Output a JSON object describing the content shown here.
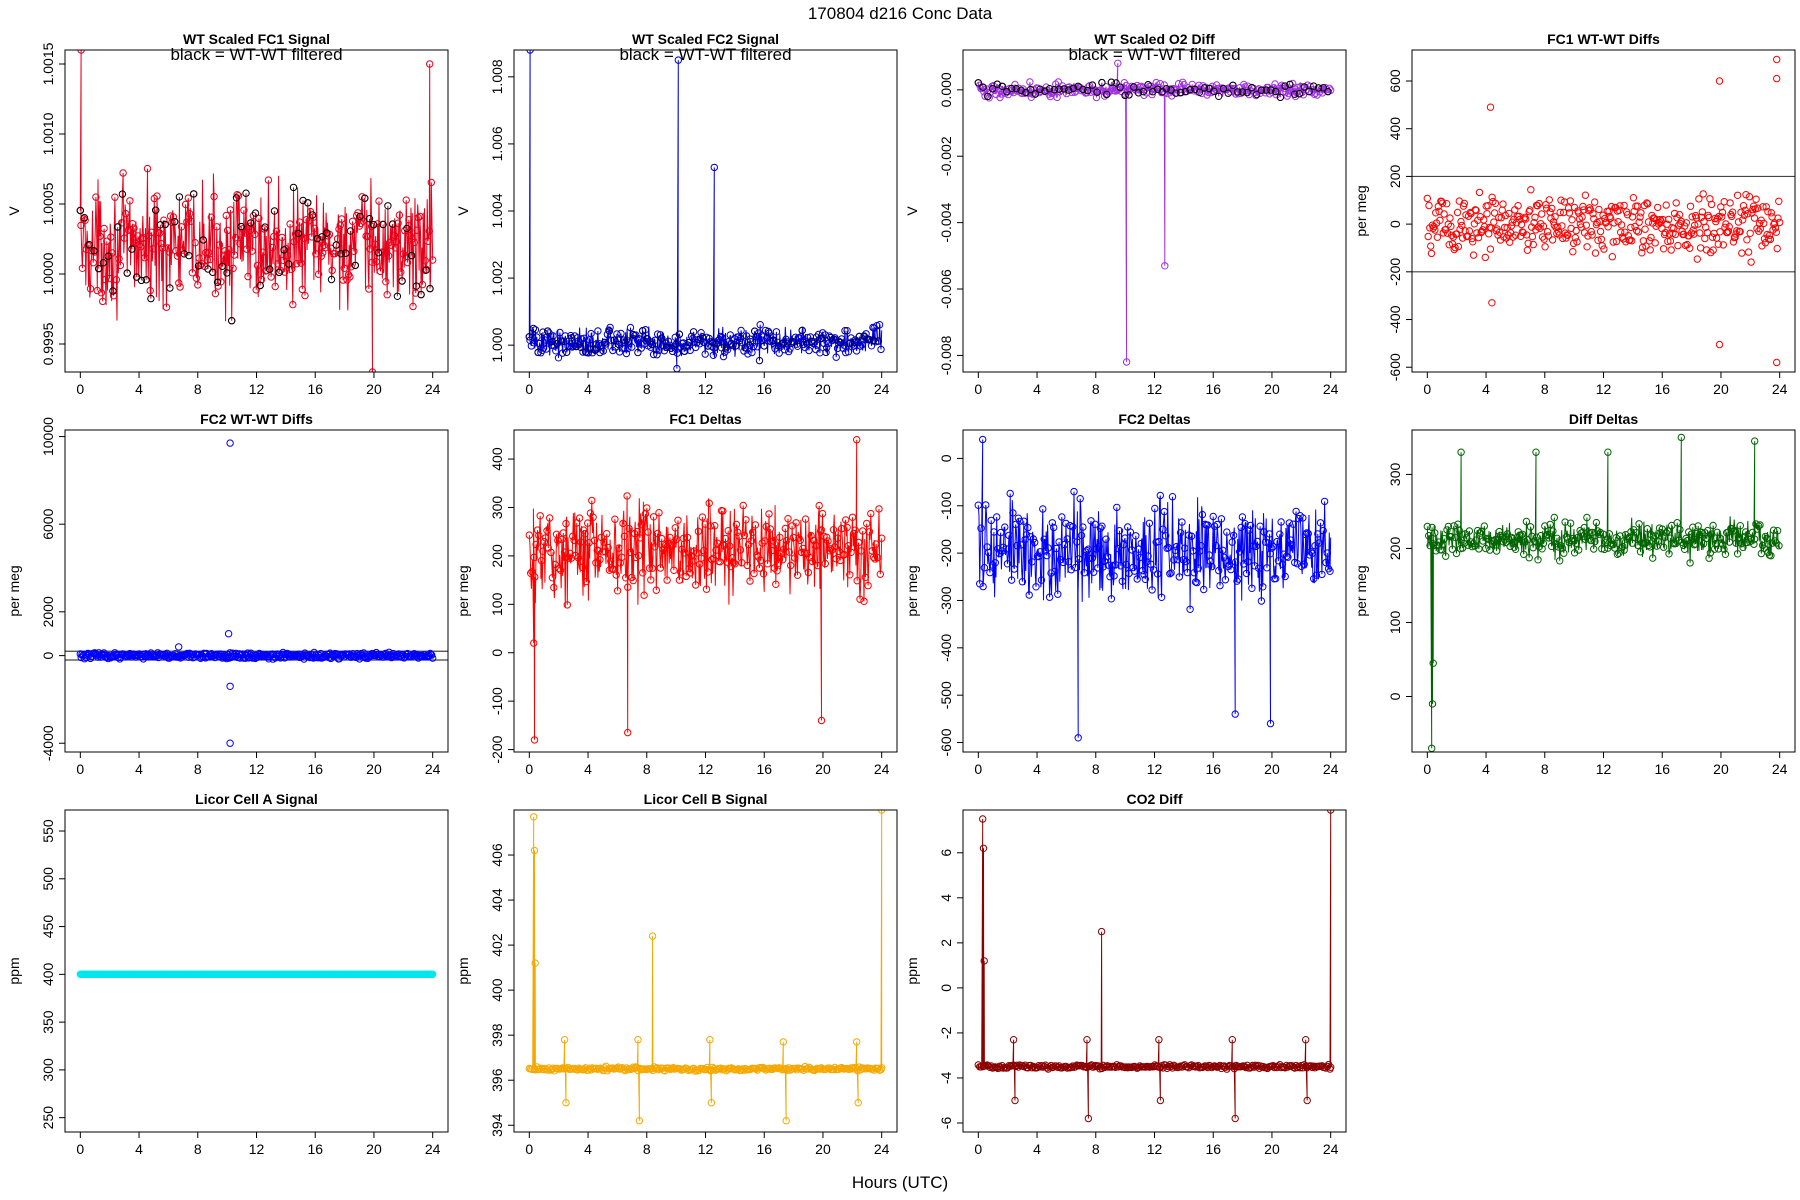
{
  "figure": {
    "title": "170804   d216   Conc Data",
    "xlabel": "Hours (UTC)"
  },
  "chart_data": [
    {
      "type": "line",
      "title": "WT Scaled FC1 Signal",
      "subtitle": "black = WT-WT filtered",
      "ylabel": "V",
      "xlim": [
        0,
        24
      ],
      "ylim": [
        0.9993,
        1.0016
      ],
      "yticks": [
        0.9995,
        1.0,
        1.0005,
        1.001,
        1.0015
      ],
      "ytick_labels": [
        "0.9995",
        "1.0000",
        "1.0005",
        "1.0010",
        "1.0015"
      ],
      "color": "#e8001a",
      "overlay_color": "#000000",
      "baseline": 1.0002,
      "noise": 0.00025,
      "features": [
        {
          "x": 0.05,
          "y": 1.0016
        },
        {
          "x": 23.8,
          "y": 1.0015
        },
        {
          "x": 19.9,
          "y": 0.9993
        }
      ]
    },
    {
      "type": "line",
      "title": "WT Scaled FC2 Signal",
      "subtitle": "black = WT-WT filtered",
      "ylabel": "V",
      "xlim": [
        0,
        24
      ],
      "ylim": [
        0.9992,
        1.0088
      ],
      "yticks": [
        1.0,
        1.002,
        1.004,
        1.006,
        1.008
      ],
      "ytick_labels": [
        "1.000",
        "1.002",
        "1.004",
        "1.006",
        "1.008"
      ],
      "color": "#0000d0",
      "overlay_color": "#000060",
      "baseline": 1.0001,
      "noise": 0.00025,
      "features": [
        {
          "x": 0.05,
          "y": 1.0088
        },
        {
          "x": 10.05,
          "y": 0.9993
        },
        {
          "x": 10.15,
          "y": 1.0085
        },
        {
          "x": 12.6,
          "y": 1.0053
        }
      ]
    },
    {
      "type": "line",
      "title": "WT Scaled O2 Diff",
      "subtitle": "black = WT-WT filtered",
      "ylabel": "V",
      "xlim": [
        0,
        24
      ],
      "ylim": [
        -0.0085,
        0.0012
      ],
      "yticks": [
        -0.008,
        -0.006,
        -0.004,
        -0.002,
        0.0
      ],
      "ytick_labels": [
        "-0.008",
        "-0.006",
        "-0.004",
        "-0.002",
        "0.000"
      ],
      "color": "#a030e0",
      "overlay_color": "#000000",
      "baseline": 0.0,
      "noise": 0.00012,
      "features": [
        {
          "x": 9.5,
          "y": 0.0008
        },
        {
          "x": 10.1,
          "y": -0.0082
        },
        {
          "x": 12.7,
          "y": -0.0053
        }
      ]
    },
    {
      "type": "scatter",
      "title": "FC1 WT-WT Diffs",
      "ylabel": "per meg",
      "xlim": [
        0,
        24
      ],
      "ylim": [
        -620,
        730
      ],
      "yticks": [
        -600,
        -400,
        -200,
        0,
        200,
        400,
        600
      ],
      "ytick_labels": [
        "-600",
        "-400",
        "-200",
        "0",
        "200",
        "400",
        "600"
      ],
      "hlines": [
        200,
        -200
      ],
      "color": "#ff0000",
      "baseline": 0,
      "noise": 80,
      "features": [
        {
          "x": 4.3,
          "y": 490
        },
        {
          "x": 19.9,
          "y": 600
        },
        {
          "x": 23.8,
          "y": 690
        },
        {
          "x": 23.8,
          "y": 610
        },
        {
          "x": 19.9,
          "y": -505
        },
        {
          "x": 23.8,
          "y": -580
        },
        {
          "x": 4.4,
          "y": -330
        }
      ]
    },
    {
      "type": "scatter",
      "title": "FC2 WT-WT Diffs",
      "ylabel": "per meg",
      "xlim": [
        0,
        24
      ],
      "ylim": [
        -4400,
        10300
      ],
      "yticks": [
        -4000,
        0,
        2000,
        6000,
        10000
      ],
      "ytick_labels": [
        "-4000",
        "0",
        "2000",
        "6000",
        "10000"
      ],
      "hlines": [
        200,
        -200
      ],
      "color": "#0000ff",
      "baseline": 0,
      "noise": 80,
      "features": [
        {
          "x": 10.2,
          "y": 9700
        },
        {
          "x": 10.1,
          "y": 1000
        },
        {
          "x": 10.2,
          "y": -1400
        },
        {
          "x": 10.2,
          "y": -4000
        },
        {
          "x": 6.7,
          "y": 400
        }
      ]
    },
    {
      "type": "line",
      "title": "FC1 Deltas",
      "ylabel": "per meg",
      "xlim": [
        0,
        24
      ],
      "ylim": [
        -205,
        460
      ],
      "yticks": [
        -200,
        -100,
        0,
        100,
        200,
        300,
        400
      ],
      "ytick_labels": [
        "-200",
        "-100",
        "0",
        "100",
        "200",
        "300",
        "400"
      ],
      "color": "#ff0000",
      "baseline": 215,
      "noise": 55,
      "features": [
        {
          "x": 0.3,
          "y": 20
        },
        {
          "x": 0.35,
          "y": -180
        },
        {
          "x": 6.7,
          "y": -165
        },
        {
          "x": 19.9,
          "y": -140
        },
        {
          "x": 22.3,
          "y": 440
        }
      ]
    },
    {
      "type": "line",
      "title": "FC2 Deltas",
      "ylabel": "per meg",
      "xlim": [
        0,
        24
      ],
      "ylim": [
        -620,
        60
      ],
      "yticks": [
        -600,
        -500,
        -400,
        -300,
        -200,
        -100,
        0
      ],
      "ytick_labels": [
        "-600",
        "-500",
        "-400",
        "-300",
        "-200",
        "-100",
        "0"
      ],
      "color": "#0000ff",
      "baseline": -200,
      "noise": 60,
      "features": [
        {
          "x": 0.3,
          "y": 40
        },
        {
          "x": 6.8,
          "y": -590
        },
        {
          "x": 19.9,
          "y": -560
        },
        {
          "x": 17.5,
          "y": -540
        }
      ]
    },
    {
      "type": "line",
      "title": "Diff Deltas",
      "ylabel": "per meg",
      "xlim": [
        0,
        24
      ],
      "ylim": [
        -75,
        360
      ],
      "yticks": [
        0,
        100,
        200,
        300
      ],
      "ytick_labels": [
        "0",
        "100",
        "200",
        "300"
      ],
      "color": "#006400",
      "baseline": 212,
      "noise": 14,
      "features": [
        {
          "x": 0.3,
          "y": -70
        },
        {
          "x": 0.35,
          "y": -10
        },
        {
          "x": 0.4,
          "y": 45
        },
        {
          "x": 2.3,
          "y": 330
        },
        {
          "x": 7.4,
          "y": 330
        },
        {
          "x": 12.3,
          "y": 330
        },
        {
          "x": 17.3,
          "y": 350
        },
        {
          "x": 22.3,
          "y": 345
        }
      ]
    },
    {
      "type": "scatter",
      "title": "Licor Cell A Signal",
      "ylabel": "ppm",
      "xlim": [
        0,
        24
      ],
      "ylim": [
        235,
        572
      ],
      "yticks": [
        250,
        300,
        350,
        400,
        450,
        500,
        550
      ],
      "ytick_labels": [
        "250",
        "300",
        "350",
        "400",
        "450",
        "500",
        "550"
      ],
      "color": "#00e5ee",
      "baseline": 400,
      "noise": 0,
      "features": []
    },
    {
      "type": "line",
      "title": "Licor Cell B Signal",
      "ylabel": "ppm",
      "xlim": [
        0,
        24
      ],
      "ylim": [
        393.7,
        408.0
      ],
      "yticks": [
        394,
        396,
        398,
        400,
        402,
        404,
        406
      ],
      "ytick_labels": [
        "394",
        "396",
        "398",
        "400",
        "402",
        "404",
        "406"
      ],
      "color": "#f5a800",
      "baseline": 396.5,
      "noise": 0.05,
      "features": [
        {
          "x": 0.3,
          "y": 407.7
        },
        {
          "x": 0.35,
          "y": 406.2
        },
        {
          "x": 0.4,
          "y": 401.2
        },
        {
          "x": 2.4,
          "y": 397.8
        },
        {
          "x": 2.5,
          "y": 395.0
        },
        {
          "x": 7.4,
          "y": 397.8
        },
        {
          "x": 7.5,
          "y": 394.2
        },
        {
          "x": 8.4,
          "y": 402.4
        },
        {
          "x": 12.3,
          "y": 397.8
        },
        {
          "x": 12.4,
          "y": 395.0
        },
        {
          "x": 17.3,
          "y": 397.7
        },
        {
          "x": 17.5,
          "y": 394.2
        },
        {
          "x": 22.3,
          "y": 397.7
        },
        {
          "x": 22.4,
          "y": 395.0
        },
        {
          "x": 24.0,
          "y": 408.0
        }
      ]
    },
    {
      "type": "line",
      "title": "CO2 Diff",
      "ylabel": "ppm",
      "xlim": [
        0,
        24
      ],
      "ylim": [
        -6.4,
        7.9
      ],
      "yticks": [
        -6,
        -4,
        -2,
        0,
        2,
        4,
        6
      ],
      "ytick_labels": [
        "-6",
        "-4",
        "-2",
        "0",
        "2",
        "4",
        "6"
      ],
      "color": "#8b0000",
      "baseline": -3.5,
      "noise": 0.05,
      "features": [
        {
          "x": 0.3,
          "y": 7.5
        },
        {
          "x": 0.35,
          "y": 6.2
        },
        {
          "x": 0.4,
          "y": 1.2
        },
        {
          "x": 2.4,
          "y": -2.3
        },
        {
          "x": 2.5,
          "y": -5.0
        },
        {
          "x": 7.4,
          "y": -2.3
        },
        {
          "x": 7.5,
          "y": -5.8
        },
        {
          "x": 8.4,
          "y": 2.5
        },
        {
          "x": 12.3,
          "y": -2.3
        },
        {
          "x": 12.4,
          "y": -5.0
        },
        {
          "x": 17.3,
          "y": -2.3
        },
        {
          "x": 17.5,
          "y": -5.8
        },
        {
          "x": 22.3,
          "y": -2.3
        },
        {
          "x": 22.4,
          "y": -5.0
        },
        {
          "x": 24.0,
          "y": 7.9
        }
      ]
    }
  ]
}
